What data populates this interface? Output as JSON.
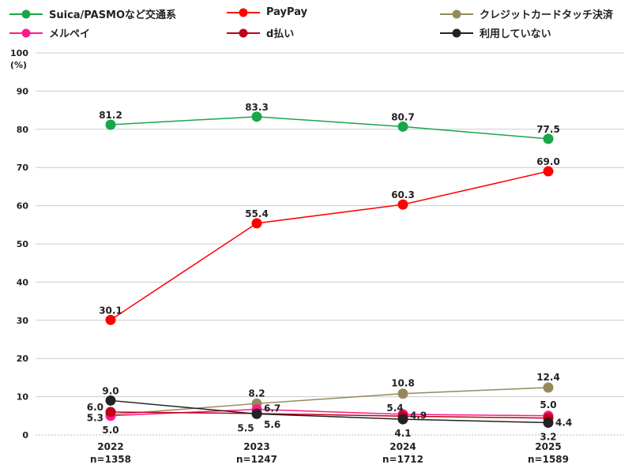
{
  "chart_data": {
    "type": "line",
    "categories": [
      "2022\nn=1358",
      "2023\nn=1247",
      "2024\nn=1712",
      "2025\nn=1589"
    ],
    "category_years": [
      "2022",
      "2023",
      "2024",
      "2025"
    ],
    "category_n": [
      "n=1358",
      "n=1247",
      "n=1712",
      "n=1589"
    ],
    "ylabel": "(%)",
    "ylim": [
      0,
      100
    ],
    "yticks": [
      0,
      10,
      20,
      30,
      40,
      50,
      60,
      70,
      80,
      90,
      100
    ],
    "grid": true,
    "legend_position": "top",
    "series": [
      {
        "name": "Suica/PASMOなど交通系",
        "color": "#1aa64a",
        "values": [
          81.2,
          83.3,
          80.7,
          77.5
        ]
      },
      {
        "name": "PayPay",
        "color": "#ff0000",
        "values": [
          30.1,
          55.4,
          60.3,
          69.0
        ]
      },
      {
        "name": "クレジットカードタッチ決済",
        "color": "#968a5a",
        "values": [
          5.3,
          8.2,
          10.8,
          12.4
        ]
      },
      {
        "name": "メルペイ",
        "color": "#ff1a8c",
        "values": [
          5.0,
          6.7,
          5.4,
          5.0
        ]
      },
      {
        "name": "d払い",
        "color": "#c00018",
        "values": [
          6.0,
          5.6,
          4.9,
          4.4
        ]
      },
      {
        "name": "利用していない",
        "color": "#222222",
        "values": [
          9.0,
          5.5,
          4.1,
          3.2
        ]
      }
    ]
  }
}
